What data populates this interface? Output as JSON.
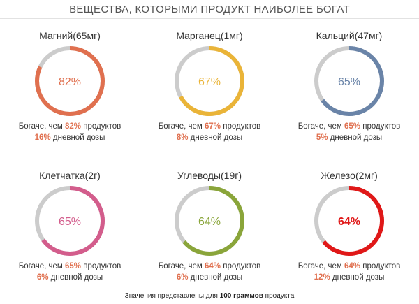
{
  "page": {
    "title": "ВЕЩЕСТВА, КОТОРЫМИ ПРОДУКТ НАИБОЛЕЕ БОГАТ",
    "footer_prefix": "Значения представлены для ",
    "footer_bold": "100 граммов",
    "footer_suffix": " продукта"
  },
  "labels": {
    "richer_prefix": "Богаче, чем ",
    "richer_suffix": " продуктов",
    "daily_suffix": " дневной дозы"
  },
  "nutrients": [
    {
      "name": "Магний(65мг)",
      "percent": 82,
      "percent_label": "82%",
      "daily_label": "16%",
      "color": "#e0704f",
      "track": "#cccccc"
    },
    {
      "name": "Марганец(1мг)",
      "percent": 67,
      "percent_label": "67%",
      "daily_label": "8%",
      "color": "#eab438",
      "track": "#cccccc"
    },
    {
      "name": "Кальций(47мг)",
      "percent": 65,
      "percent_label": "65%",
      "daily_label": "5%",
      "color": "#6a84a8",
      "track": "#cccccc"
    },
    {
      "name": "Клетчатка(2г)",
      "percent": 65,
      "percent_label": "65%",
      "daily_label": "6%",
      "color": "#d35d8c",
      "track": "#cccccc"
    },
    {
      "name": "Углеводы(19г)",
      "percent": 64,
      "percent_label": "64%",
      "daily_label": "6%",
      "color": "#8aa53a",
      "track": "#cccccc"
    },
    {
      "name": "Железо(2мг)",
      "percent": 64,
      "percent_label": "64%",
      "daily_label": "12%",
      "color": "#e01818",
      "track": "#cccccc"
    }
  ]
}
